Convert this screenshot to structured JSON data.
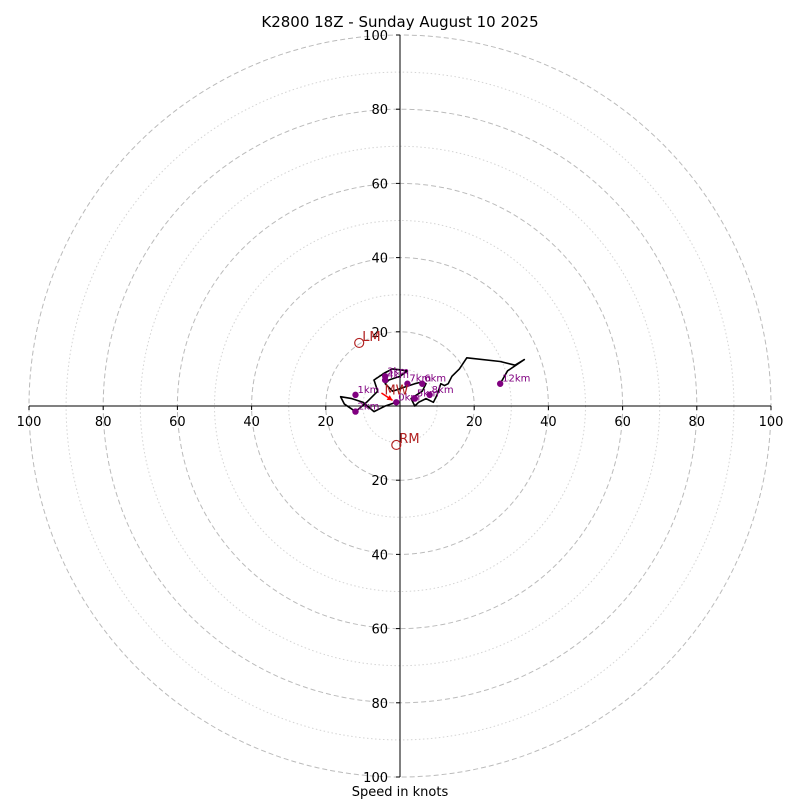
{
  "chart_data": {
    "type": "hodograph",
    "title": "K2800 18Z - Sunday August 10 2025",
    "xlabel": "Speed in knots",
    "xlim": [
      -100,
      100
    ],
    "ylim": [
      -100,
      100
    ],
    "grid": "rings",
    "major_rings": [
      20,
      40,
      60,
      80,
      100
    ],
    "minor_rings": [
      10,
      30,
      50,
      70,
      90
    ],
    "tick_values": [
      100,
      80,
      60,
      40,
      20
    ],
    "x_ticks": [
      {
        "value": -100,
        "label": "100"
      },
      {
        "value": -80,
        "label": "80"
      },
      {
        "value": -60,
        "label": "60"
      },
      {
        "value": -40,
        "label": "40"
      },
      {
        "value": -20,
        "label": "20"
      },
      {
        "value": 20,
        "label": "20"
      },
      {
        "value": 40,
        "label": "40"
      },
      {
        "value": 60,
        "label": "60"
      },
      {
        "value": 80,
        "label": "80"
      },
      {
        "value": 100,
        "label": "100"
      }
    ],
    "y_ticks": [
      {
        "value": 100,
        "label": "100"
      },
      {
        "value": 80,
        "label": "80"
      },
      {
        "value": 60,
        "label": "60"
      },
      {
        "value": 40,
        "label": "40"
      },
      {
        "value": 20,
        "label": "20"
      },
      {
        "value": -20,
        "label": "20"
      },
      {
        "value": -40,
        "label": "40"
      },
      {
        "value": -60,
        "label": "60"
      },
      {
        "value": -80,
        "label": "80"
      },
      {
        "value": -100,
        "label": "100"
      }
    ],
    "trace": [
      [
        -1,
        1
      ],
      [
        -4,
        0
      ],
      [
        -7,
        -1.5
      ],
      [
        -10,
        1
      ],
      [
        -13,
        2
      ],
      [
        -16,
        2.5
      ],
      [
        -15,
        0.5
      ],
      [
        -12,
        -1.5
      ],
      [
        -9,
        1
      ],
      [
        -6,
        4
      ],
      [
        -7,
        7
      ],
      [
        -4,
        9
      ],
      [
        -2,
        10
      ],
      [
        2,
        9.5
      ],
      [
        0,
        8
      ],
      [
        -3,
        7
      ],
      [
        -4,
        6
      ],
      [
        -2,
        4
      ],
      [
        1,
        5
      ],
      [
        4,
        6
      ],
      [
        6,
        6.5
      ],
      [
        7,
        6
      ],
      [
        6,
        4
      ],
      [
        3,
        2
      ],
      [
        4,
        0
      ],
      [
        5,
        1
      ],
      [
        7,
        2
      ],
      [
        9,
        1
      ],
      [
        10,
        3
      ],
      [
        11,
        6
      ],
      [
        12,
        5.5
      ],
      [
        13,
        6
      ],
      [
        14,
        8
      ],
      [
        16,
        10
      ],
      [
        18,
        13
      ],
      [
        27,
        12
      ],
      [
        31,
        11
      ],
      [
        33.5,
        12.5
      ],
      [
        29,
        9.5
      ],
      [
        27,
        6
      ]
    ],
    "height_markers": [
      {
        "label": "0km",
        "u": -1,
        "v": 1
      },
      {
        "label": "1km",
        "u": -12,
        "v": 3
      },
      {
        "label": "2km",
        "u": -12,
        "v": -1.5
      },
      {
        "label": "3km",
        "u": -4,
        "v": 8
      },
      {
        "label": "4km",
        "u": -4,
        "v": 7
      },
      {
        "label": "5km",
        "u": 4,
        "v": 2
      },
      {
        "label": "6km",
        "u": 6,
        "v": 6
      },
      {
        "label": "7km",
        "u": 2,
        "v": 6
      },
      {
        "label": "8km",
        "u": 8,
        "v": 3
      },
      {
        "label": "12km",
        "u": 27,
        "v": 6
      }
    ],
    "motion_markers": [
      {
        "label": "LM",
        "u": -11,
        "v": 17
      },
      {
        "label": "RM",
        "u": -1,
        "v": -10.5
      },
      {
        "label": "MW",
        "u": -5,
        "v": 2.5
      }
    ],
    "shear_vector": {
      "from": [
        -5,
        3.5
      ],
      "to": [
        -2,
        1.5
      ]
    },
    "colors": {
      "trace": "#000000",
      "height_marker": "#800080",
      "motion_marker": "#b22222",
      "shear_vector": "#ff0000",
      "grid": "#bbbbbb",
      "axes": "#000000"
    }
  }
}
